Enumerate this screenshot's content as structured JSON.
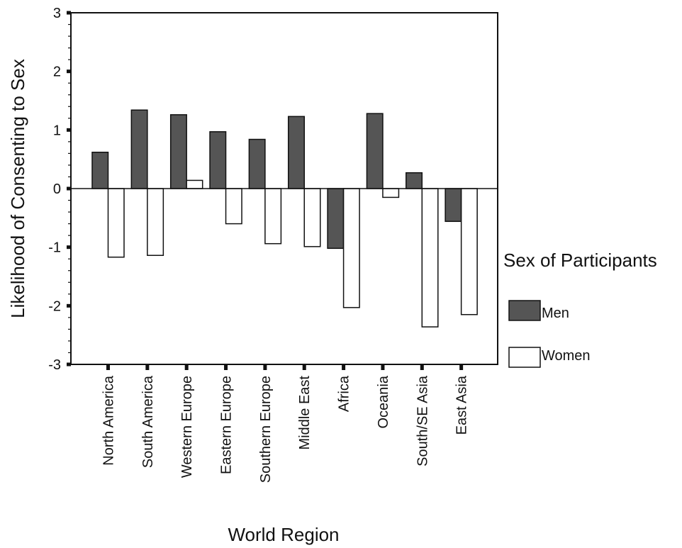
{
  "chart_data": {
    "type": "bar",
    "title": "",
    "xlabel": "World Region",
    "ylabel": "Likelihood of Consenting to Sex",
    "ylim": [
      -3,
      3
    ],
    "yticks": [
      3,
      2,
      1,
      0,
      -1,
      -2,
      -3
    ],
    "grid": false,
    "categories": [
      "North America",
      "South America",
      "Western Europe",
      "Eastern Europe",
      "Southern Europe",
      "Middle East",
      "Africa",
      "Oceania",
      "South/SE Asia",
      "East Asia"
    ],
    "series": [
      {
        "name": "Men",
        "color": "#555555",
        "values": [
          0.62,
          1.34,
          1.26,
          0.97,
          0.84,
          1.23,
          -1.02,
          1.28,
          0.27,
          -0.56
        ]
      },
      {
        "name": "Women",
        "color": "#ffffff",
        "values": [
          -1.17,
          -1.14,
          0.14,
          -0.6,
          -0.94,
          -0.99,
          -2.03,
          -0.15,
          -2.36,
          -2.15
        ]
      }
    ],
    "legend": {
      "title": "Sex of Participants",
      "position": "right"
    }
  }
}
